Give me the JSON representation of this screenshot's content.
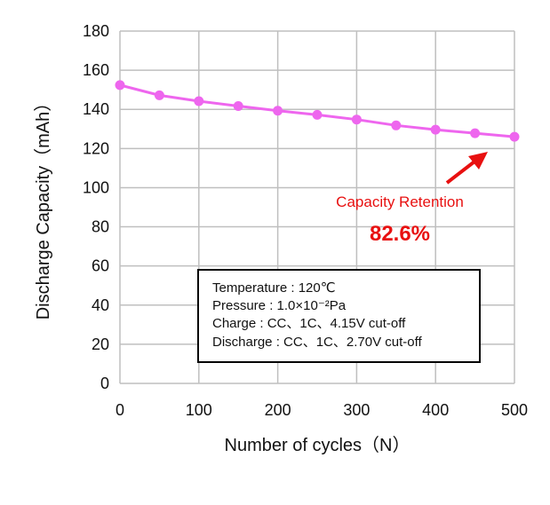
{
  "chart_data": {
    "type": "line",
    "title": "",
    "xlabel": "Number of cycles（N）",
    "ylabel": "Discharge Capacity（mAh）",
    "xlim": [
      0,
      500
    ],
    "ylim": [
      0,
      180
    ],
    "xticks": [
      0,
      100,
      200,
      300,
      400,
      500
    ],
    "yticks": [
      0,
      20,
      40,
      60,
      80,
      100,
      120,
      140,
      160,
      180
    ],
    "grid": true,
    "series": [
      {
        "name": "Discharge Capacity",
        "color": "#ee66ee",
        "x": [
          0,
          50,
          100,
          150,
          200,
          250,
          300,
          350,
          400,
          450,
          500
        ],
        "y": [
          152.4,
          147.2,
          144.2,
          141.7,
          139.3,
          137.2,
          134.8,
          131.8,
          129.6,
          127.8,
          126.0
        ]
      }
    ],
    "annotation": {
      "label": "Capacity Retention",
      "value": "82.6%",
      "color": "#e81010"
    },
    "conditions": [
      "Temperature : 120℃",
      "Pressure : 1.0×10⁻²Pa",
      "Charge : CC、1C、4.15V cut-off",
      "Discharge : CC、1C、2.70V cut-off"
    ]
  }
}
